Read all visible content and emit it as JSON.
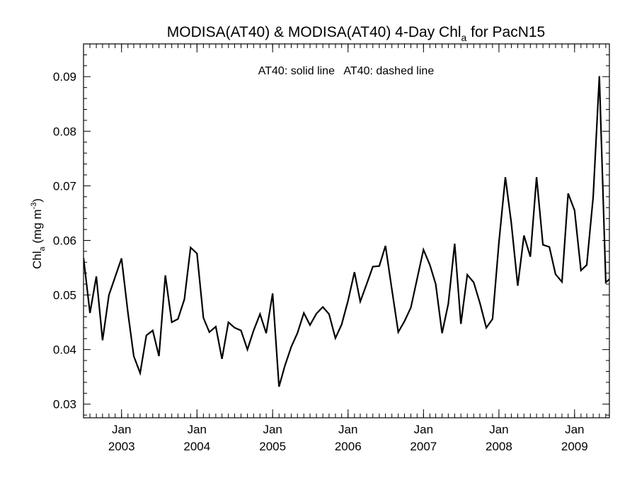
{
  "chart_data": {
    "type": "line",
    "title_main": "MODISA(AT40) & MODISA(AT40) 4-Day Chl",
    "title_sub": "a",
    "title_tail": " for PacN15",
    "ylabel_main": "Chl",
    "ylabel_sub": "a",
    "ylabel_unit": " (mg m",
    "ylabel_sup": "-3",
    "ylabel_close": ")",
    "legend_text": "AT40: solid line   AT40: dashed line",
    "xlim": [
      "2002-07-01",
      "2009-06-01"
    ],
    "ylim": [
      0.0275,
      0.096
    ],
    "yticks": [
      0.03,
      0.04,
      0.05,
      0.06,
      0.07,
      0.08,
      0.09
    ],
    "ytick_labels": [
      "0.03",
      "0.04",
      "0.05",
      "0.06",
      "0.07",
      "0.08",
      "0.09"
    ],
    "xticks": [
      {
        "date": "2003-01-01",
        "month": "Jan",
        "year": "2003"
      },
      {
        "date": "2004-01-01",
        "month": "Jan",
        "year": "2004"
      },
      {
        "date": "2005-01-01",
        "month": "Jan",
        "year": "2005"
      },
      {
        "date": "2006-01-01",
        "month": "Jan",
        "year": "2006"
      },
      {
        "date": "2007-01-01",
        "month": "Jan",
        "year": "2007"
      },
      {
        "date": "2008-01-01",
        "month": "Jan",
        "year": "2008"
      },
      {
        "date": "2009-01-01",
        "month": "Jan",
        "year": "2009"
      }
    ],
    "series": [
      {
        "style": "solid",
        "color": "#000000",
        "points": [
          [
            "2002-07-01",
            0.0568
          ],
          [
            "2002-08-01",
            0.0467
          ],
          [
            "2002-09-01",
            0.0534
          ],
          [
            "2002-10-01",
            0.0417
          ],
          [
            "2002-11-01",
            0.05
          ],
          [
            "2003-01-01",
            0.0567
          ],
          [
            "2003-02-01",
            0.0467
          ],
          [
            "2003-03-01",
            0.0388
          ],
          [
            "2003-04-01",
            0.0357
          ],
          [
            "2003-05-01",
            0.0426
          ],
          [
            "2003-06-01",
            0.0435
          ],
          [
            "2003-07-01",
            0.0388
          ],
          [
            "2003-08-01",
            0.0536
          ],
          [
            "2003-09-01",
            0.045
          ],
          [
            "2003-10-01",
            0.0456
          ],
          [
            "2003-11-01",
            0.0492
          ],
          [
            "2003-12-01",
            0.0587
          ],
          [
            "2004-01-01",
            0.0576
          ],
          [
            "2004-02-01",
            0.0458
          ],
          [
            "2004-03-01",
            0.0432
          ],
          [
            "2004-04-01",
            0.0442
          ],
          [
            "2004-05-01",
            0.0383
          ],
          [
            "2004-06-01",
            0.045
          ],
          [
            "2004-07-01",
            0.044
          ],
          [
            "2004-08-01",
            0.0435
          ],
          [
            "2004-09-01",
            0.04
          ],
          [
            "2004-10-01",
            0.0435
          ],
          [
            "2004-11-01",
            0.0465
          ],
          [
            "2004-12-01",
            0.043
          ],
          [
            "2005-01-01",
            0.0503
          ],
          [
            "2005-02-01",
            0.0332
          ],
          [
            "2005-03-01",
            0.037
          ],
          [
            "2005-04-01",
            0.0405
          ],
          [
            "2005-05-01",
            0.043
          ],
          [
            "2005-06-01",
            0.0467
          ],
          [
            "2005-07-01",
            0.0445
          ],
          [
            "2005-08-01",
            0.0466
          ],
          [
            "2005-09-01",
            0.0478
          ],
          [
            "2005-10-01",
            0.0465
          ],
          [
            "2005-11-01",
            0.0421
          ],
          [
            "2005-12-01",
            0.0446
          ],
          [
            "2006-01-01",
            0.049
          ],
          [
            "2006-02-01",
            0.0542
          ],
          [
            "2006-03-01",
            0.0488
          ],
          [
            "2006-04-01",
            0.052
          ],
          [
            "2006-05-01",
            0.0552
          ],
          [
            "2006-06-01",
            0.0553
          ],
          [
            "2006-07-01",
            0.059
          ],
          [
            "2006-08-01",
            0.051
          ],
          [
            "2006-09-01",
            0.0432
          ],
          [
            "2006-10-01",
            0.0452
          ],
          [
            "2006-11-01",
            0.0477
          ],
          [
            "2007-01-01",
            0.0583
          ],
          [
            "2007-02-01",
            0.0555
          ],
          [
            "2007-03-01",
            0.052
          ],
          [
            "2007-04-01",
            0.043
          ],
          [
            "2007-05-01",
            0.0484
          ],
          [
            "2007-06-01",
            0.0594
          ],
          [
            "2007-07-01",
            0.0447
          ],
          [
            "2007-08-01",
            0.0537
          ],
          [
            "2007-09-01",
            0.0523
          ],
          [
            "2007-10-01",
            0.0485
          ],
          [
            "2007-11-01",
            0.044
          ],
          [
            "2007-12-01",
            0.0456
          ],
          [
            "2008-01-01",
            0.0596
          ],
          [
            "2008-02-01",
            0.0716
          ],
          [
            "2008-03-01",
            0.0632
          ],
          [
            "2008-04-01",
            0.0517
          ],
          [
            "2008-05-01",
            0.0609
          ],
          [
            "2008-06-01",
            0.057
          ],
          [
            "2008-07-01",
            0.0716
          ],
          [
            "2008-08-01",
            0.0592
          ],
          [
            "2008-09-01",
            0.0588
          ],
          [
            "2008-10-01",
            0.0538
          ],
          [
            "2008-11-01",
            0.0524
          ],
          [
            "2008-12-01",
            0.0686
          ],
          [
            "2009-01-01",
            0.0655
          ],
          [
            "2009-02-01",
            0.0545
          ],
          [
            "2009-03-01",
            0.0555
          ],
          [
            "2009-04-01",
            0.068
          ],
          [
            "2009-05-01",
            0.0901
          ],
          [
            "2009-06-01",
            0.0523
          ],
          [
            "2009-07-01",
            0.0533
          ]
        ]
      }
    ],
    "grid": false,
    "legend_placement": "top-center"
  }
}
